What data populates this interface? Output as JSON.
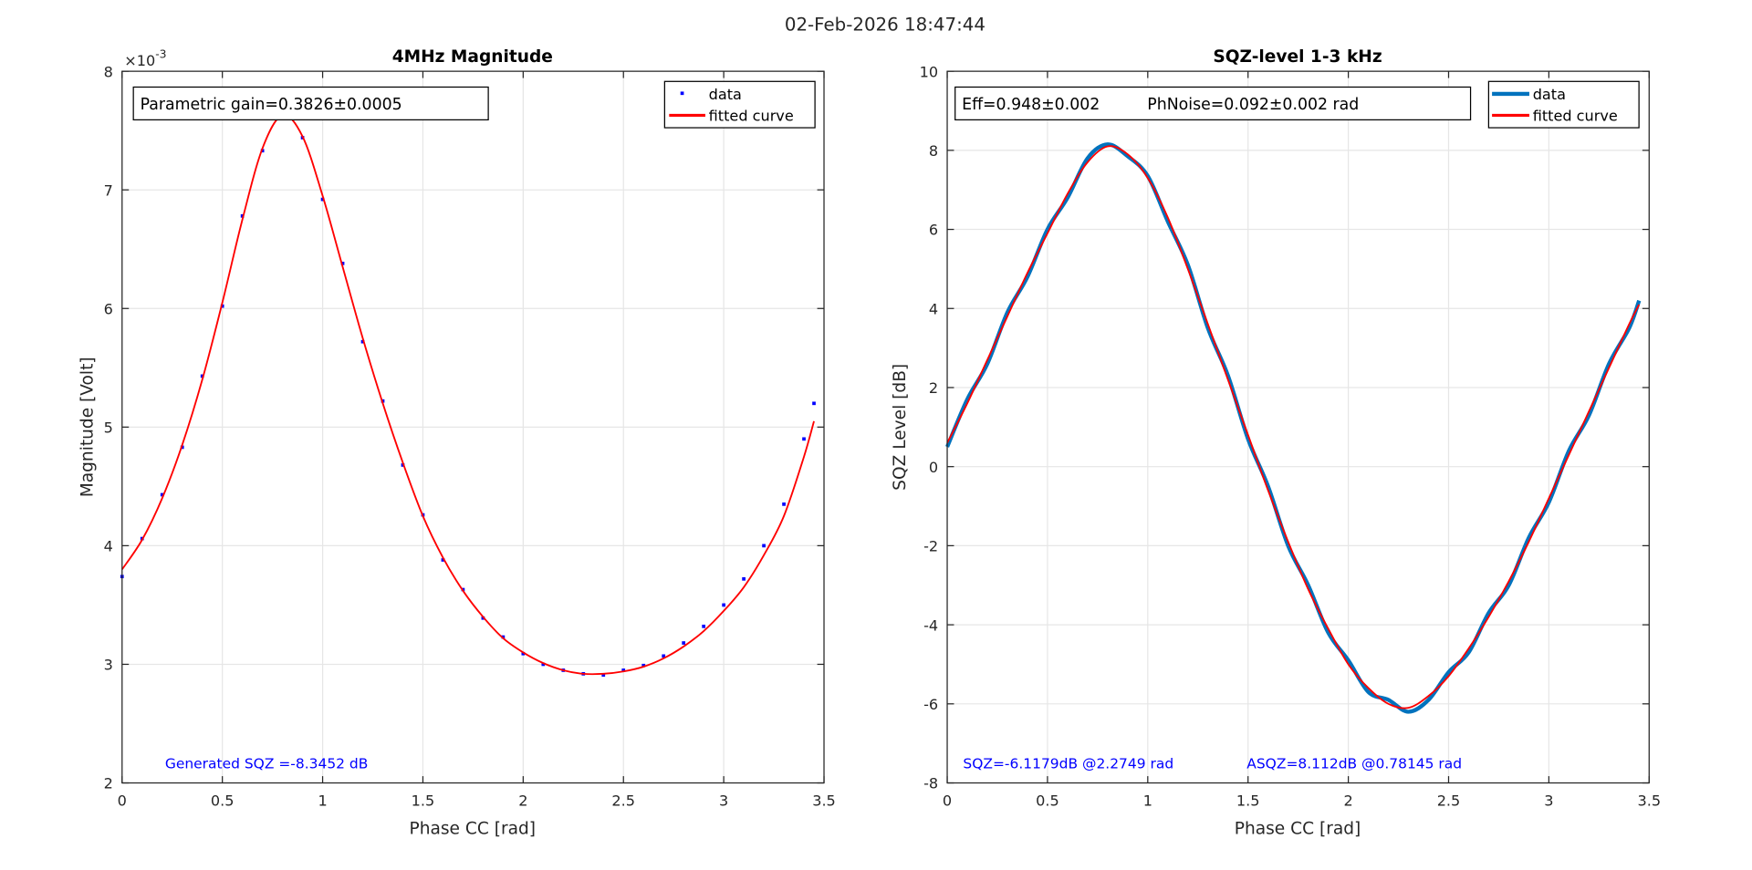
{
  "figure_title": "02-Feb-2026 18:47:44",
  "chart_data": [
    {
      "type": "line",
      "title": "4MHz Magnitude",
      "xlabel": "Phase CC [rad]",
      "ylabel": "Magnitude  [Volt]",
      "y_exponent_label": "×10",
      "y_exponent": "-3",
      "xlim": [
        0,
        3.5
      ],
      "ylim": [
        2,
        8
      ],
      "xticks": [
        "0",
        "0.5",
        "1",
        "1.5",
        "2",
        "2.5",
        "3",
        "3.5"
      ],
      "yticks": [
        "2",
        "3",
        "4",
        "5",
        "6",
        "7",
        "8"
      ],
      "grid": true,
      "legend": {
        "position": "top-right",
        "entries": [
          "data",
          "fitted curve"
        ]
      },
      "textbox": "Parametric gain=0.3826±0.0005",
      "annotation": "Generated SQZ =-8.3452 dB",
      "x": [
        0,
        0.1,
        0.2,
        0.3,
        0.4,
        0.5,
        0.6,
        0.7,
        0.8,
        0.9,
        1.0,
        1.1,
        1.2,
        1.3,
        1.4,
        1.5,
        1.6,
        1.7,
        1.8,
        1.9,
        2.0,
        2.1,
        2.2,
        2.3,
        2.4,
        2.5,
        2.6,
        2.7,
        2.8,
        2.9,
        3.0,
        3.1,
        3.2,
        3.3,
        3.4,
        3.45
      ],
      "series": [
        {
          "name": "data",
          "color": "#0000ff",
          "style": "points",
          "values": [
            3.74,
            4.06,
            4.43,
            4.83,
            5.43,
            6.02,
            6.78,
            7.33,
            7.64,
            7.44,
            6.92,
            6.38,
            5.72,
            5.22,
            4.68,
            4.26,
            3.88,
            3.63,
            3.39,
            3.23,
            3.09,
            3.0,
            2.95,
            2.92,
            2.91,
            2.95,
            2.99,
            3.07,
            3.18,
            3.32,
            3.5,
            3.72,
            4.0,
            4.35,
            4.9,
            5.2
          ]
        },
        {
          "name": "fitted curve",
          "color": "#ff0000",
          "style": "line",
          "values": [
            3.8,
            4.05,
            4.4,
            4.85,
            5.4,
            6.05,
            6.75,
            7.35,
            7.63,
            7.45,
            6.95,
            6.35,
            5.75,
            5.2,
            4.7,
            4.25,
            3.9,
            3.62,
            3.4,
            3.22,
            3.1,
            3.01,
            2.95,
            2.92,
            2.92,
            2.94,
            2.98,
            3.05,
            3.15,
            3.28,
            3.45,
            3.65,
            3.92,
            4.25,
            4.75,
            5.05
          ]
        }
      ]
    },
    {
      "type": "line",
      "title": "SQZ-level 1-3 kHz",
      "xlabel": "Phase CC [rad]",
      "ylabel": "SQZ Level [dB]",
      "xlim": [
        0,
        3.5
      ],
      "ylim": [
        -8,
        10
      ],
      "xticks": [
        "0",
        "0.5",
        "1",
        "1.5",
        "2",
        "2.5",
        "3",
        "3.5"
      ],
      "yticks": [
        "-8",
        "-6",
        "-4",
        "-2",
        "0",
        "2",
        "4",
        "6",
        "8",
        "10"
      ],
      "grid": true,
      "legend": {
        "position": "top-right",
        "entries": [
          "data",
          "fitted curve"
        ]
      },
      "textbox_eff": "Eff=0.948±0.002",
      "textbox_phnoise": "PhNoise=0.092±0.002  rad",
      "annotation_sqz": "SQZ=-6.1179dB  @2.2749 rad",
      "annotation_asqz": "ASQZ=8.112dB  @0.78145 rad",
      "x": [
        0,
        0.1,
        0.2,
        0.3,
        0.4,
        0.5,
        0.6,
        0.7,
        0.8,
        0.9,
        1.0,
        1.1,
        1.2,
        1.3,
        1.4,
        1.5,
        1.6,
        1.7,
        1.8,
        1.9,
        2.0,
        2.1,
        2.2,
        2.3,
        2.4,
        2.5,
        2.6,
        2.7,
        2.8,
        2.9,
        3.0,
        3.1,
        3.2,
        3.3,
        3.4,
        3.45
      ],
      "series": [
        {
          "name": "data",
          "color": "#0072bd",
          "style": "line",
          "values": [
            0.5,
            1.7,
            2.6,
            3.9,
            4.8,
            6.0,
            6.8,
            7.8,
            8.15,
            7.85,
            7.35,
            6.2,
            5.1,
            3.5,
            2.3,
            0.7,
            -0.5,
            -2.0,
            -3.0,
            -4.2,
            -4.9,
            -5.7,
            -5.9,
            -6.2,
            -5.9,
            -5.2,
            -4.7,
            -3.7,
            -3.0,
            -1.8,
            -0.9,
            0.4,
            1.3,
            2.6,
            3.5,
            4.2
          ]
        },
        {
          "name": "fitted curve",
          "color": "#ff0000",
          "style": "line",
          "values": [
            0.6,
            1.6,
            2.7,
            3.8,
            4.9,
            5.9,
            6.9,
            7.7,
            8.1,
            7.9,
            7.3,
            6.3,
            5.0,
            3.6,
            2.2,
            0.8,
            -0.6,
            -1.9,
            -3.1,
            -4.1,
            -5.0,
            -5.6,
            -6.0,
            -6.1,
            -5.8,
            -5.3,
            -4.6,
            -3.8,
            -2.9,
            -1.9,
            -0.8,
            0.3,
            1.4,
            2.5,
            3.6,
            4.1
          ]
        }
      ]
    }
  ]
}
